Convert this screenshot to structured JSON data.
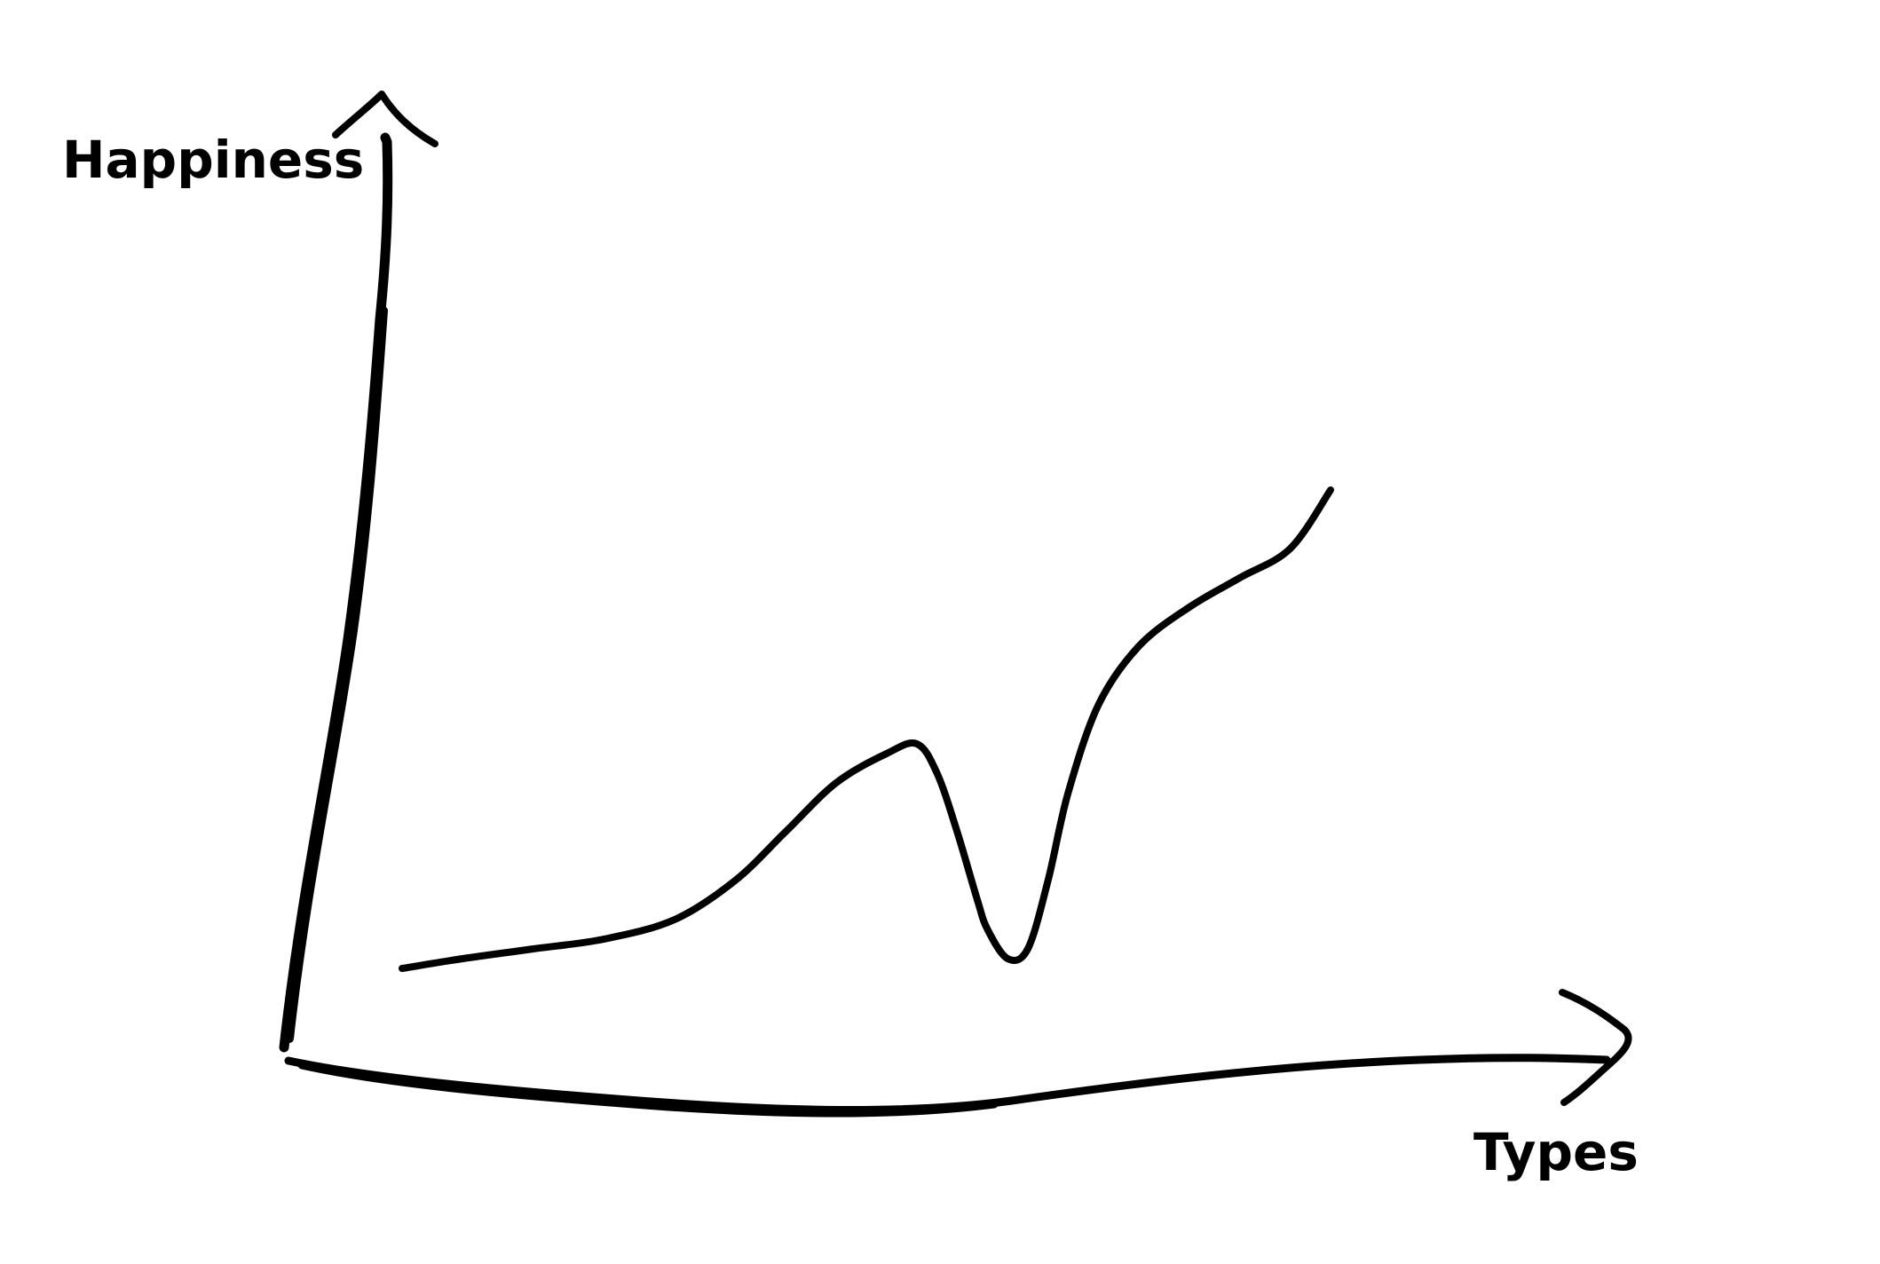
{
  "chart_data": {
    "type": "line",
    "title": "",
    "xlabel": "Types",
    "ylabel": "Happiness",
    "xlim": [
      0,
      10
    ],
    "ylim": [
      0,
      10
    ],
    "grid": false,
    "ticks": false,
    "series": [
      {
        "name": "",
        "x": [
          0.0,
          0.6,
          1.3,
          2.0,
          2.7,
          3.3,
          3.8,
          4.3,
          4.8,
          5.1,
          5.3,
          5.5,
          5.7,
          5.8,
          6.0,
          6.2,
          6.4,
          6.6,
          6.9,
          7.3,
          7.8,
          8.3,
          8.8,
          9.2
        ],
        "y": [
          1.9,
          2.0,
          2.1,
          2.2,
          2.4,
          2.8,
          3.3,
          3.8,
          4.1,
          4.2,
          3.9,
          3.3,
          2.6,
          2.3,
          2.0,
          2.1,
          2.8,
          3.7,
          4.6,
          5.2,
          5.6,
          5.9,
          6.2,
          6.8
        ],
        "color": "#000000"
      }
    ]
  }
}
